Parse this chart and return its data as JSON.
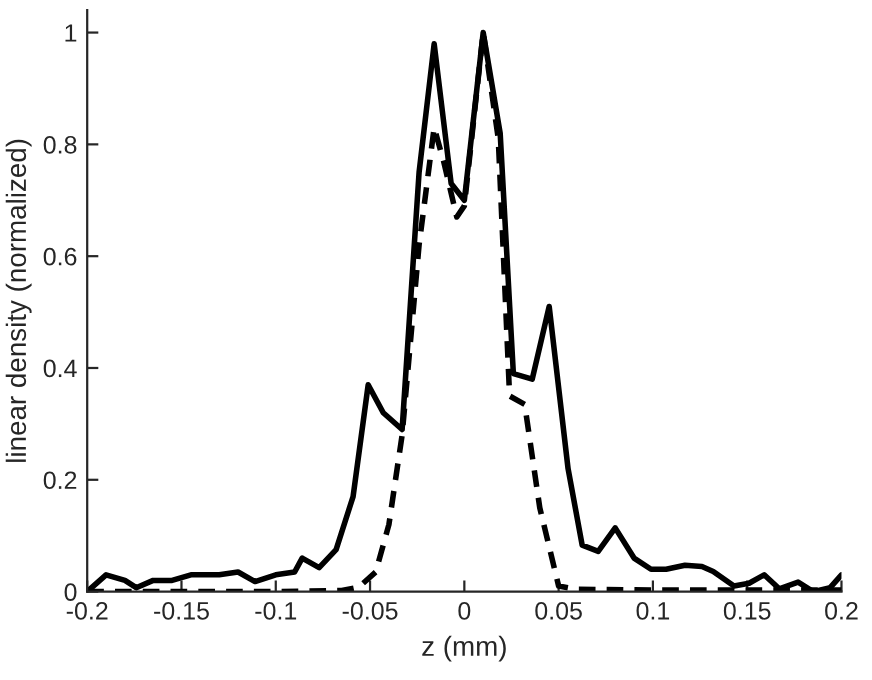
{
  "chart_data": {
    "type": "line",
    "xlabel": "z (mm)",
    "ylabel": "linear density (normalized)",
    "xlim": [
      -0.2,
      0.2
    ],
    "ylim": [
      0,
      1.04
    ],
    "xticks": [
      -0.2,
      -0.15,
      -0.1,
      -0.05,
      0,
      0.05,
      0.1,
      0.15,
      0.2
    ],
    "yticks": [
      0,
      0.2,
      0.4,
      0.6,
      0.8,
      1
    ],
    "grid": false,
    "marker": "none",
    "series": [
      {
        "color": "#000000",
        "line_style": "solid",
        "x": [
          -0.2,
          -0.19,
          -0.18,
          -0.174,
          -0.165,
          -0.155,
          -0.145,
          -0.13,
          -0.12,
          -0.111,
          -0.1,
          -0.09,
          -0.086,
          -0.077,
          -0.068,
          -0.059,
          -0.051,
          -0.043,
          -0.033,
          -0.024,
          -0.016,
          -0.007,
          0.0,
          0.01,
          0.019,
          0.026,
          0.036,
          0.045,
          0.055,
          0.0625,
          0.071,
          0.08,
          0.09,
          0.099,
          0.107,
          0.117,
          0.126,
          0.132,
          0.143,
          0.151,
          0.159,
          0.167,
          0.177,
          0.185,
          0.194,
          0.2
        ],
        "values": [
          0,
          0.03,
          0.02,
          0.007,
          0.02,
          0.02,
          0.03,
          0.03,
          0.035,
          0.018,
          0.03,
          0.035,
          0.06,
          0.043,
          0.075,
          0.17,
          0.37,
          0.32,
          0.29,
          0.75,
          0.98,
          0.73,
          0.7,
          1.0,
          0.82,
          0.39,
          0.38,
          0.51,
          0.22,
          0.083,
          0.072,
          0.114,
          0.06,
          0.04,
          0.04,
          0.047,
          0.045,
          0.036,
          0.01,
          0.015,
          0.03,
          0.005,
          0.017,
          0.0,
          0.007,
          0.03
        ]
      },
      {
        "color": "#000000",
        "line_style": "dashed",
        "x": [
          -0.2,
          -0.1,
          -0.065,
          -0.056,
          -0.047,
          -0.04,
          -0.033,
          -0.024,
          -0.016,
          -0.011,
          -0.004,
          0.0,
          0.01,
          0.018,
          0.024,
          0.032,
          0.04,
          0.05,
          0.06,
          0.1,
          0.2
        ],
        "values": [
          0,
          0,
          0.002,
          0.008,
          0.035,
          0.12,
          0.28,
          0.62,
          0.83,
          0.77,
          0.67,
          0.69,
          1.0,
          0.81,
          0.35,
          0.335,
          0.15,
          0.01,
          0.004,
          0.003,
          0.003
        ]
      }
    ]
  }
}
